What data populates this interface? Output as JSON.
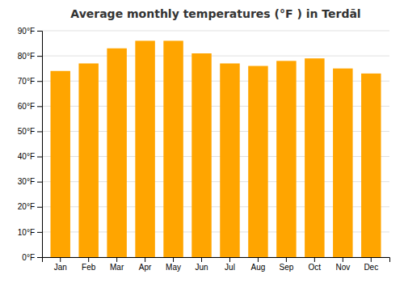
{
  "chart_data": {
    "type": "bar",
    "title": "Average monthly temperatures (°F ) in Terdāl",
    "categories": [
      "Jan",
      "Feb",
      "Mar",
      "Apr",
      "May",
      "Jun",
      "Jul",
      "Aug",
      "Sep",
      "Oct",
      "Nov",
      "Dec"
    ],
    "values": [
      74,
      77,
      83,
      86,
      86,
      81,
      77,
      76,
      78,
      79,
      75,
      73
    ],
    "color": "#FFA500",
    "ylim": [
      0,
      90
    ],
    "yticks": [
      {
        "value": 0,
        "label": "0°F"
      },
      {
        "value": 10,
        "label": "10°F"
      },
      {
        "value": 20,
        "label": "20°F"
      },
      {
        "value": 30,
        "label": "30°F"
      },
      {
        "value": 40,
        "label": "40°F"
      },
      {
        "value": 50,
        "label": "50°F"
      },
      {
        "value": 60,
        "label": "60°F"
      },
      {
        "value": 70,
        "label": "70°F"
      },
      {
        "value": 80,
        "label": "80°F"
      },
      {
        "value": 90,
        "label": "90°F"
      }
    ],
    "grid": true
  }
}
